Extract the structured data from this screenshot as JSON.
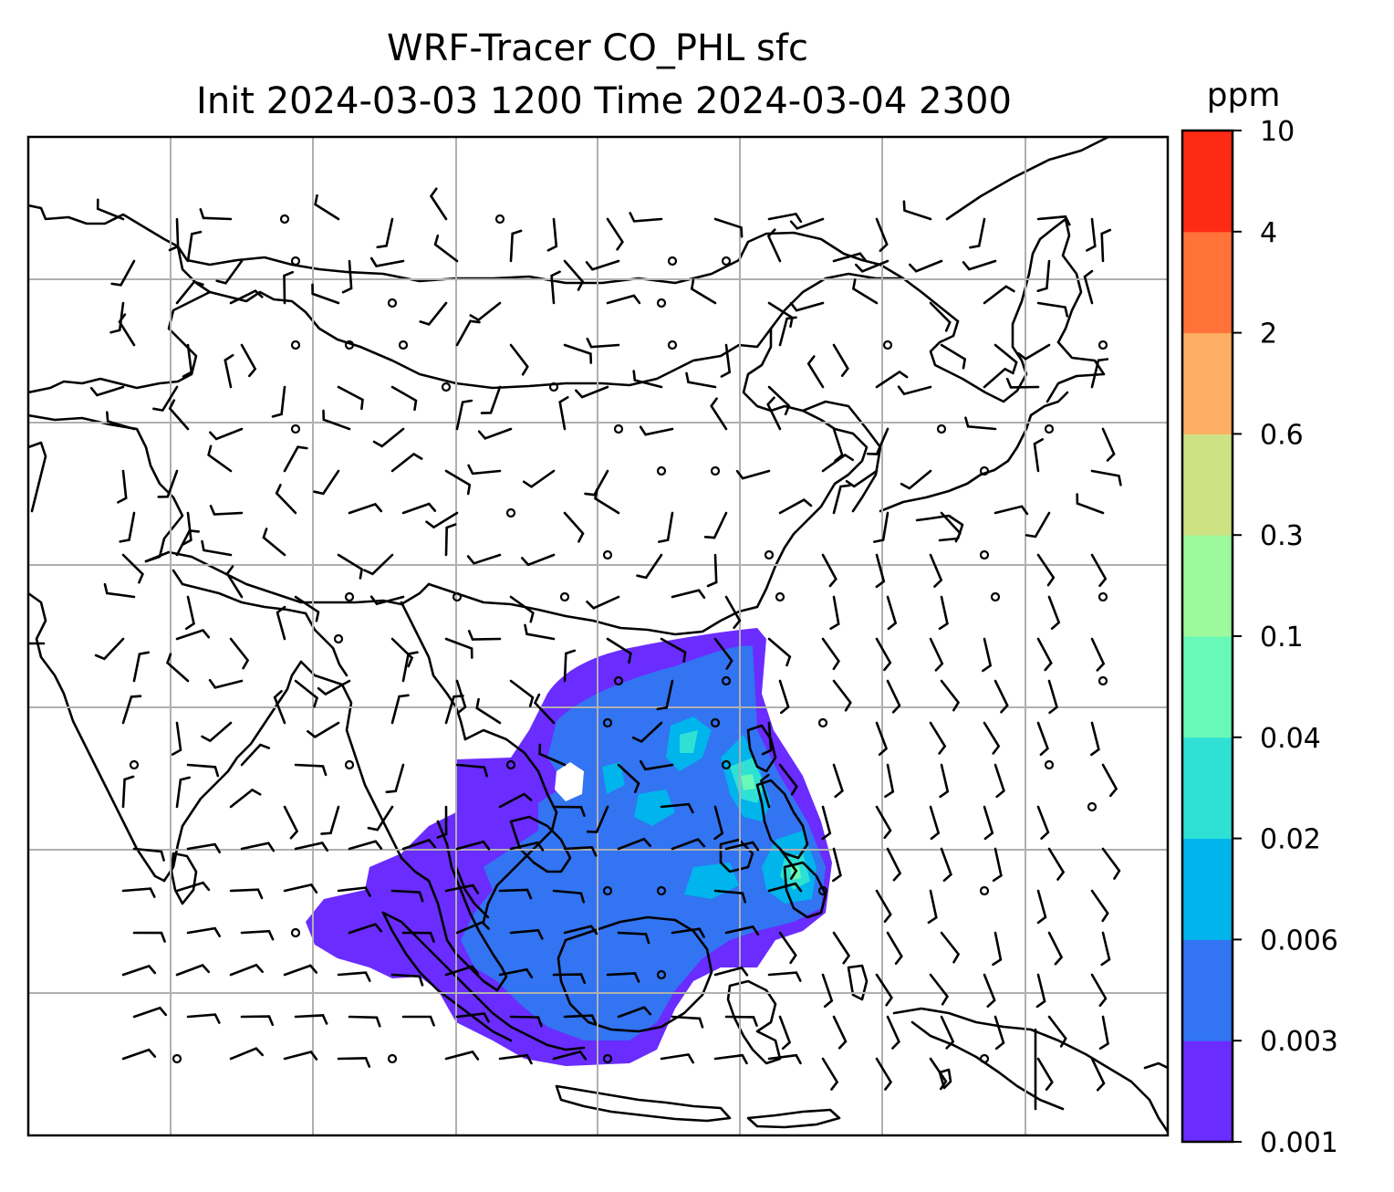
{
  "title": {
    "line1": "WRF-Tracer CO_PHL sfc",
    "line2": "Init 2024-03-03 1200 Time 2024-03-04 2300"
  },
  "colorbar": {
    "unit": "ppm",
    "levels": [
      "0.001",
      "0.003",
      "0.006",
      "0.02",
      "0.04",
      "0.1",
      "0.3",
      "0.6",
      "2",
      "4",
      "10"
    ],
    "colors": [
      "#6a2cff",
      "#3274f2",
      "#00b4ec",
      "#2fe0d5",
      "#68f9b8",
      "#9cf99c",
      "#cde283",
      "#fdb063",
      "#ff7238",
      "#ff2a14"
    ]
  },
  "map": {
    "gridlines": true,
    "features": [
      "coastlines",
      "country-borders",
      "wind-barbs",
      "tracer-concentration-fill"
    ],
    "plume_colors": {
      "lowest": "#6a2cff",
      "low": "#3274f2",
      "mid": "#00b4ec",
      "higher": "#2fe0d5",
      "peak": "#68f9b8"
    }
  }
}
